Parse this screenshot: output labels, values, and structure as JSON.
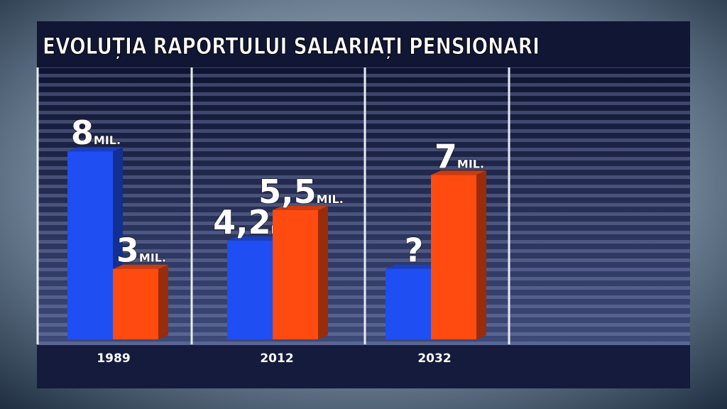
{
  "chart_data": {
    "type": "bar",
    "title": "EVOLUȚIA RAPORTULUI SALARIAȚI PENSIONARI",
    "categories": [
      "1989",
      "2012",
      "2032"
    ],
    "unit_label": "MIL.",
    "series": [
      {
        "color": "#1f4ff2",
        "values": [
          8,
          4.2,
          3
        ],
        "value_labels": [
          "8",
          "4,2",
          "?"
        ]
      },
      {
        "color": "#ff4a10",
        "values": [
          3,
          5.5,
          7
        ],
        "value_labels": [
          "3",
          "5,5",
          "7"
        ]
      }
    ]
  }
}
